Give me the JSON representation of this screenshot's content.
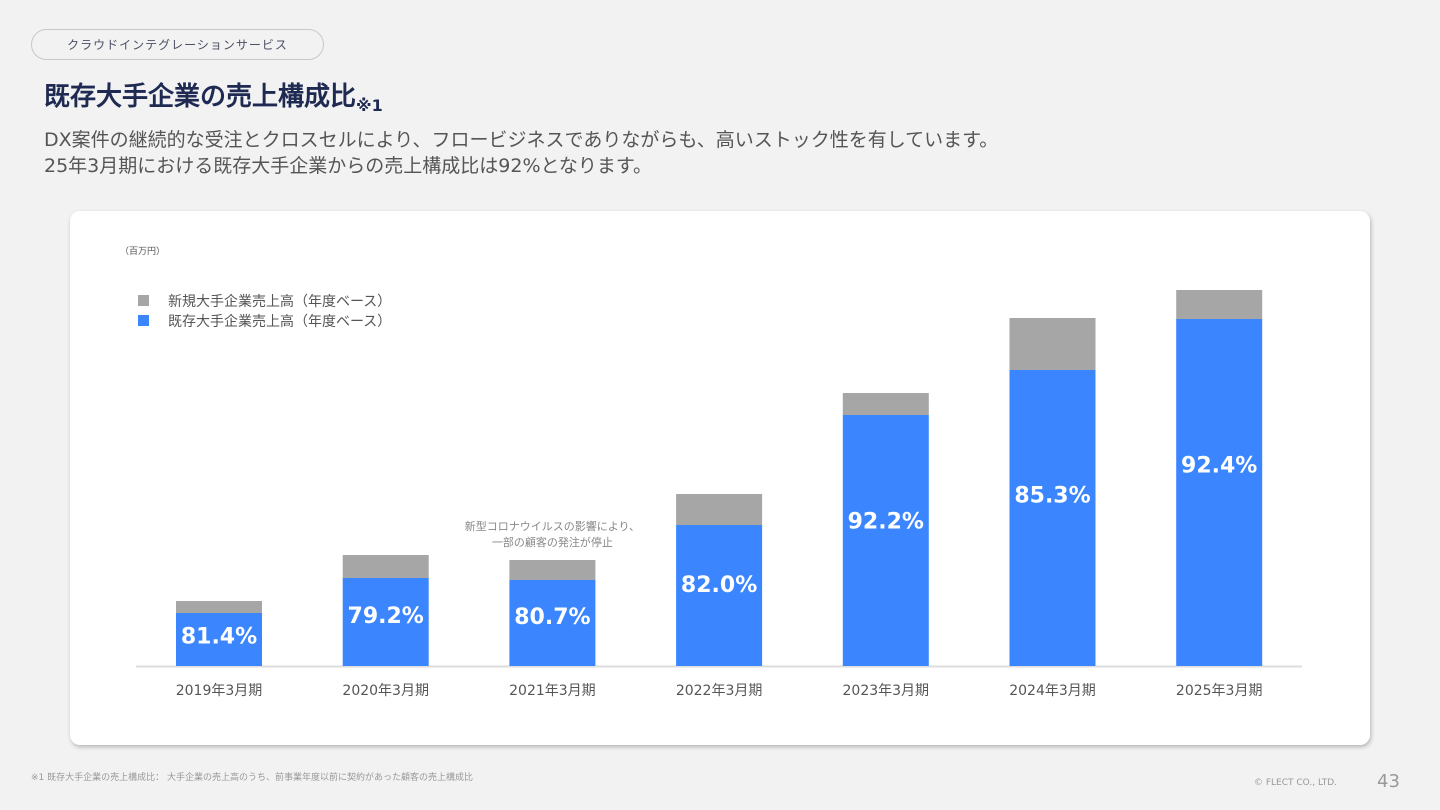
{
  "header": {
    "section_label": "クラウドインテグレーションサービス",
    "title": "既存大手企業の売上構成比",
    "title_note": "※1",
    "lead_lines": [
      "DX案件の継続的な受注とクロスセルにより、フロービジネスでありながらも、高いストック性を有しています。",
      "25年3月期における既存大手企業からの売上構成比は92%となります。"
    ]
  },
  "chart_data": {
    "type": "bar",
    "stacked": true,
    "unit_label": "（百万円）",
    "categories": [
      "2019年3月期",
      "2020年3月期",
      "2021年3月期",
      "2022年3月期",
      "2023年3月期",
      "2024年3月期",
      "2025年3月期"
    ],
    "series": [
      {
        "name": "既存大手企業売上高（年度ベース）",
        "color": "#3b86ff",
        "values": [
          53,
          88,
          86,
          141,
          251,
          296,
          347
        ]
      },
      {
        "name": "新規大手企業売上高（年度ベース）",
        "color": "#a6a6a6",
        "values": [
          12,
          23,
          20,
          31,
          22,
          52,
          29
        ]
      }
    ],
    "data_labels": [
      "81.4%",
      "79.2%",
      "80.7%",
      "82.0%",
      "92.2%",
      "85.3%",
      "92.4%"
    ],
    "value_note": "bar heights are relative estimates; y-axis values not printed",
    "ylim": [
      0,
      400
    ],
    "grid": false,
    "legend_position": "top-left",
    "annotation": {
      "category": "2021年3月期",
      "lines": [
        "新型コロナウイルスの影響により、",
        "一部の顧客の発注が停止"
      ]
    }
  },
  "footer": {
    "note": "※1 既存大手企業の売上構成比： 大手企業の売上高のうち、前事業年度以前に契約があった顧客の売上構成比",
    "copyright": "© FLECT CO., LTD.",
    "page_number": "43"
  }
}
